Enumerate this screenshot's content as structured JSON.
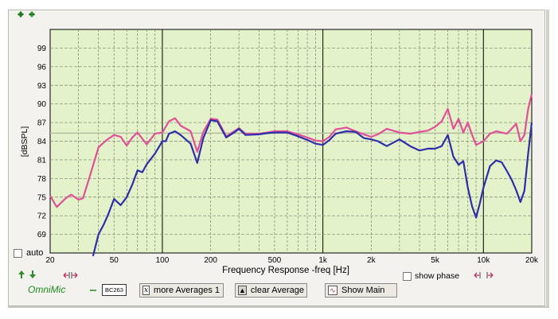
{
  "chart_data": {
    "type": "line",
    "xlabel": "Frequency Response -freq [Hz]",
    "ylabel": "[dBSPL]",
    "x_scale": "log",
    "xlim": [
      20,
      20000
    ],
    "ylim": [
      66,
      102
    ],
    "x_ticks": [
      {
        "value": 20,
        "label": "20"
      },
      {
        "value": 50,
        "label": "50"
      },
      {
        "value": 100,
        "label": "100"
      },
      {
        "value": 200,
        "label": "200"
      },
      {
        "value": 500,
        "label": "500"
      },
      {
        "value": 1000,
        "label": "1k"
      },
      {
        "value": 2000,
        "label": "2k"
      },
      {
        "value": 5000,
        "label": "5k"
      },
      {
        "value": 10000,
        "label": "10k"
      },
      {
        "value": 20000,
        "label": "20k"
      }
    ],
    "y_ticks": [
      69,
      72,
      75,
      78,
      81,
      84,
      87,
      90,
      93,
      96,
      99
    ],
    "reference_line": 85.3,
    "grid": true,
    "series": [
      {
        "color": "#e0509a",
        "points": [
          [
            20,
            75.2
          ],
          [
            22,
            73.4
          ],
          [
            25,
            74.8
          ],
          [
            27,
            75.4
          ],
          [
            30,
            74.6
          ],
          [
            32,
            74.8
          ],
          [
            35,
            78
          ],
          [
            40,
            83
          ],
          [
            45,
            84.2
          ],
          [
            50,
            85
          ],
          [
            55,
            84.7
          ],
          [
            60,
            83.3
          ],
          [
            65,
            84.6
          ],
          [
            70,
            85.4
          ],
          [
            80,
            83.5
          ],
          [
            90,
            85.2
          ],
          [
            100,
            85.4
          ],
          [
            110,
            87.2
          ],
          [
            120,
            87.7
          ],
          [
            130,
            86.5
          ],
          [
            150,
            85.6
          ],
          [
            165,
            82.3
          ],
          [
            180,
            85.5
          ],
          [
            200,
            87.6
          ],
          [
            220,
            87.5
          ],
          [
            250,
            84.8
          ],
          [
            280,
            85.6
          ],
          [
            300,
            86.1
          ],
          [
            330,
            85.2
          ],
          [
            400,
            85.2
          ],
          [
            450,
            85.4
          ],
          [
            500,
            85.6
          ],
          [
            600,
            85.6
          ],
          [
            700,
            85.1
          ],
          [
            800,
            84.6
          ],
          [
            900,
            84.1
          ],
          [
            1000,
            84
          ],
          [
            1100,
            84.7
          ],
          [
            1200,
            85.9
          ],
          [
            1400,
            86.2
          ],
          [
            1600,
            85.6
          ],
          [
            1800,
            85.1
          ],
          [
            2000,
            84.7
          ],
          [
            2200,
            85.1
          ],
          [
            2500,
            86
          ],
          [
            3000,
            85.4
          ],
          [
            3500,
            85.2
          ],
          [
            4000,
            85.5
          ],
          [
            4500,
            85.7
          ],
          [
            5000,
            86.3
          ],
          [
            5500,
            87.2
          ],
          [
            6000,
            89.2
          ],
          [
            6500,
            86
          ],
          [
            7000,
            87.6
          ],
          [
            7500,
            85.4
          ],
          [
            8000,
            87
          ],
          [
            8500,
            85
          ],
          [
            9000,
            83.4
          ],
          [
            10000,
            84
          ],
          [
            11000,
            85.2
          ],
          [
            12000,
            85.6
          ],
          [
            14000,
            85.2
          ],
          [
            16000,
            86.8
          ],
          [
            17000,
            84
          ],
          [
            18000,
            85
          ],
          [
            19000,
            89.2
          ],
          [
            20000,
            91.6
          ]
        ]
      },
      {
        "color": "#2e2eaa",
        "points": [
          [
            37,
            65.5
          ],
          [
            40,
            69
          ],
          [
            43,
            70.5
          ],
          [
            46,
            72.2
          ],
          [
            50,
            74.7
          ],
          [
            55,
            73.7
          ],
          [
            60,
            75
          ],
          [
            65,
            77
          ],
          [
            70,
            79.3
          ],
          [
            75,
            79
          ],
          [
            80,
            80.3
          ],
          [
            90,
            82
          ],
          [
            100,
            84
          ],
          [
            105,
            84
          ],
          [
            110,
            85.2
          ],
          [
            120,
            85.6
          ],
          [
            130,
            85
          ],
          [
            150,
            83.6
          ],
          [
            165,
            80.5
          ],
          [
            180,
            84.5
          ],
          [
            200,
            87.4
          ],
          [
            220,
            87.2
          ],
          [
            250,
            84.6
          ],
          [
            280,
            85.4
          ],
          [
            300,
            86
          ],
          [
            330,
            85
          ],
          [
            400,
            85.1
          ],
          [
            450,
            85.3
          ],
          [
            500,
            85.4
          ],
          [
            600,
            85.4
          ],
          [
            700,
            84.8
          ],
          [
            800,
            84.2
          ],
          [
            900,
            83.6
          ],
          [
            1000,
            83.4
          ],
          [
            1100,
            84.2
          ],
          [
            1200,
            85.2
          ],
          [
            1400,
            85.6
          ],
          [
            1600,
            85.5
          ],
          [
            1800,
            84.5
          ],
          [
            2000,
            84.3
          ],
          [
            2200,
            84
          ],
          [
            2500,
            83.2
          ],
          [
            3000,
            84.3
          ],
          [
            3500,
            83.2
          ],
          [
            4000,
            82.5
          ],
          [
            4500,
            82.8
          ],
          [
            5000,
            82.8
          ],
          [
            5500,
            83.2
          ],
          [
            6000,
            85
          ],
          [
            6500,
            81.5
          ],
          [
            7000,
            80.2
          ],
          [
            7500,
            80.8
          ],
          [
            8000,
            76.5
          ],
          [
            8500,
            73.5
          ],
          [
            9000,
            71.7
          ],
          [
            9500,
            74
          ],
          [
            10000,
            76.5
          ],
          [
            11000,
            80
          ],
          [
            12000,
            80.9
          ],
          [
            13000,
            80.6
          ],
          [
            14000,
            79.2
          ],
          [
            15000,
            77.8
          ],
          [
            16000,
            76.1
          ],
          [
            17000,
            74.2
          ],
          [
            18000,
            76
          ],
          [
            19000,
            82
          ],
          [
            20000,
            87
          ]
        ]
      }
    ]
  },
  "controls": {
    "auto_label": "auto",
    "show_phase_label": "show phase",
    "omnimic_label": "OmniMic",
    "badge_label": "BC263",
    "more_averages_label": "more Averages 1",
    "clear_average_label": "clear Average",
    "show_main_label": "Show Main"
  }
}
